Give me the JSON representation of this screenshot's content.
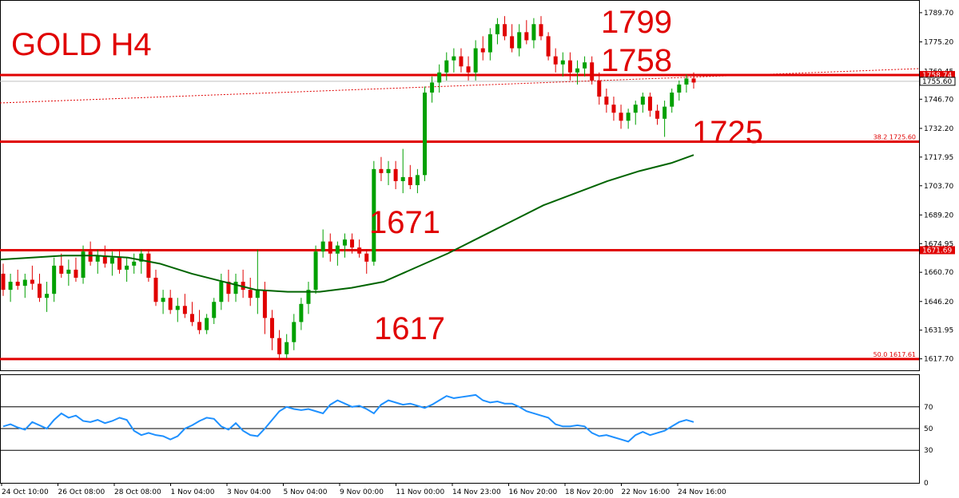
{
  "chart_data": {
    "type": "candlestick",
    "title": "GOLD H4",
    "price_axis": {
      "ylim": [
        1612,
        1796
      ],
      "ticks": [
        "1789.70",
        "1775.20",
        "1760.45",
        "1746.70",
        "1732.20",
        "1717.95",
        "1703.70",
        "1689.20",
        "1674.95",
        "1660.70",
        "1646.20",
        "1631.95",
        "1617.70"
      ]
    },
    "time_axis": {
      "ticks": [
        "24 Oct 10:00",
        "26 Oct 08:00",
        "28 Oct 08:00",
        "1 Nov 04:00",
        "3 Nov 04:00",
        "5 Nov 04:00",
        "9 Nov 00:00",
        "11 Nov 00:00",
        "14 Nov 23:00",
        "16 Nov 20:00",
        "18 Nov 20:00",
        "22 Nov 16:00",
        "24 Nov 16:00"
      ]
    },
    "horizontal_levels": [
      {
        "value": 1758.74,
        "label": "1758.74",
        "color": "#e00000"
      },
      {
        "value": 1725.6,
        "label": "38.2 1725.60",
        "color": "#e00000"
      },
      {
        "value": 1671.69,
        "label": "1671.69",
        "color": "#e00000"
      },
      {
        "value": 1617.61,
        "label": "50.0 1617.61",
        "color": "#e00000"
      }
    ],
    "current_price": "1755.60",
    "annotations": [
      "1799",
      "1758",
      "1725",
      "1671",
      "1617"
    ],
    "moving_average": [
      [
        0,
        1667
      ],
      [
        40,
        1668
      ],
      [
        80,
        1669
      ],
      [
        120,
        1669
      ],
      [
        160,
        1668
      ],
      [
        200,
        1665
      ],
      [
        240,
        1660
      ],
      [
        280,
        1656
      ],
      [
        320,
        1652
      ],
      [
        360,
        1651
      ],
      [
        400,
        1651
      ],
      [
        440,
        1653
      ],
      [
        480,
        1656
      ],
      [
        520,
        1663
      ],
      [
        560,
        1670
      ],
      [
        600,
        1678
      ],
      [
        640,
        1686
      ],
      [
        680,
        1694
      ],
      [
        720,
        1700
      ],
      [
        760,
        1706
      ],
      [
        800,
        1711
      ],
      [
        840,
        1715
      ],
      [
        868,
        1719
      ]
    ],
    "candles": [
      {
        "o": 1660,
        "h": 1665,
        "l": 1649,
        "c": 1652
      },
      {
        "o": 1652,
        "h": 1660,
        "l": 1646,
        "c": 1656
      },
      {
        "o": 1656,
        "h": 1662,
        "l": 1652,
        "c": 1654
      },
      {
        "o": 1654,
        "h": 1660,
        "l": 1648,
        "c": 1657
      },
      {
        "o": 1657,
        "h": 1664,
        "l": 1652,
        "c": 1655
      },
      {
        "o": 1655,
        "h": 1660,
        "l": 1646,
        "c": 1648
      },
      {
        "o": 1648,
        "h": 1656,
        "l": 1641,
        "c": 1650
      },
      {
        "o": 1650,
        "h": 1668,
        "l": 1646,
        "c": 1664
      },
      {
        "o": 1664,
        "h": 1670,
        "l": 1658,
        "c": 1660
      },
      {
        "o": 1660,
        "h": 1667,
        "l": 1654,
        "c": 1662
      },
      {
        "o": 1662,
        "h": 1668,
        "l": 1656,
        "c": 1658
      },
      {
        "o": 1658,
        "h": 1674,
        "l": 1655,
        "c": 1671
      },
      {
        "o": 1671,
        "h": 1676,
        "l": 1664,
        "c": 1666
      },
      {
        "o": 1666,
        "h": 1672,
        "l": 1660,
        "c": 1669
      },
      {
        "o": 1669,
        "h": 1674,
        "l": 1663,
        "c": 1665
      },
      {
        "o": 1665,
        "h": 1671,
        "l": 1659,
        "c": 1668
      },
      {
        "o": 1668,
        "h": 1672,
        "l": 1660,
        "c": 1662
      },
      {
        "o": 1662,
        "h": 1668,
        "l": 1656,
        "c": 1664
      },
      {
        "o": 1664,
        "h": 1670,
        "l": 1660,
        "c": 1666
      },
      {
        "o": 1666,
        "h": 1672,
        "l": 1660,
        "c": 1670
      },
      {
        "o": 1670,
        "h": 1672,
        "l": 1656,
        "c": 1658
      },
      {
        "o": 1658,
        "h": 1662,
        "l": 1644,
        "c": 1646
      },
      {
        "o": 1646,
        "h": 1652,
        "l": 1640,
        "c": 1648
      },
      {
        "o": 1648,
        "h": 1652,
        "l": 1640,
        "c": 1642
      },
      {
        "o": 1642,
        "h": 1648,
        "l": 1636,
        "c": 1644
      },
      {
        "o": 1644,
        "h": 1650,
        "l": 1638,
        "c": 1640
      },
      {
        "o": 1640,
        "h": 1646,
        "l": 1634,
        "c": 1636
      },
      {
        "o": 1636,
        "h": 1642,
        "l": 1630,
        "c": 1632
      },
      {
        "o": 1632,
        "h": 1640,
        "l": 1630,
        "c": 1638
      },
      {
        "o": 1638,
        "h": 1648,
        "l": 1635,
        "c": 1646
      },
      {
        "o": 1646,
        "h": 1660,
        "l": 1642,
        "c": 1656
      },
      {
        "o": 1656,
        "h": 1662,
        "l": 1646,
        "c": 1650
      },
      {
        "o": 1650,
        "h": 1660,
        "l": 1646,
        "c": 1656
      },
      {
        "o": 1656,
        "h": 1662,
        "l": 1648,
        "c": 1652
      },
      {
        "o": 1652,
        "h": 1658,
        "l": 1644,
        "c": 1648
      },
      {
        "o": 1648,
        "h": 1672,
        "l": 1640,
        "c": 1652
      },
      {
        "o": 1652,
        "h": 1656,
        "l": 1630,
        "c": 1638
      },
      {
        "o": 1638,
        "h": 1642,
        "l": 1622,
        "c": 1628
      },
      {
        "o": 1628,
        "h": 1632,
        "l": 1617,
        "c": 1620
      },
      {
        "o": 1620,
        "h": 1630,
        "l": 1618,
        "c": 1626
      },
      {
        "o": 1626,
        "h": 1640,
        "l": 1622,
        "c": 1636
      },
      {
        "o": 1636,
        "h": 1648,
        "l": 1632,
        "c": 1645
      },
      {
        "o": 1645,
        "h": 1656,
        "l": 1640,
        "c": 1652
      },
      {
        "o": 1652,
        "h": 1674,
        "l": 1650,
        "c": 1671
      },
      {
        "o": 1671,
        "h": 1682,
        "l": 1668,
        "c": 1676
      },
      {
        "o": 1676,
        "h": 1680,
        "l": 1666,
        "c": 1670
      },
      {
        "o": 1670,
        "h": 1676,
        "l": 1664,
        "c": 1674
      },
      {
        "o": 1674,
        "h": 1680,
        "l": 1668,
        "c": 1677
      },
      {
        "o": 1677,
        "h": 1680,
        "l": 1670,
        "c": 1673
      },
      {
        "o": 1673,
        "h": 1677,
        "l": 1668,
        "c": 1670
      },
      {
        "o": 1670,
        "h": 1672,
        "l": 1660,
        "c": 1666
      },
      {
        "o": 1666,
        "h": 1716,
        "l": 1664,
        "c": 1712
      },
      {
        "o": 1712,
        "h": 1718,
        "l": 1706,
        "c": 1710
      },
      {
        "o": 1710,
        "h": 1716,
        "l": 1704,
        "c": 1712
      },
      {
        "o": 1712,
        "h": 1716,
        "l": 1702,
        "c": 1706
      },
      {
        "o": 1706,
        "h": 1722,
        "l": 1700,
        "c": 1708
      },
      {
        "o": 1708,
        "h": 1714,
        "l": 1702,
        "c": 1704
      },
      {
        "o": 1704,
        "h": 1712,
        "l": 1700,
        "c": 1709
      },
      {
        "o": 1709,
        "h": 1753,
        "l": 1706,
        "c": 1750
      },
      {
        "o": 1750,
        "h": 1758,
        "l": 1745,
        "c": 1755
      },
      {
        "o": 1755,
        "h": 1764,
        "l": 1750,
        "c": 1760
      },
      {
        "o": 1760,
        "h": 1770,
        "l": 1756,
        "c": 1766
      },
      {
        "o": 1766,
        "h": 1772,
        "l": 1760,
        "c": 1768
      },
      {
        "o": 1768,
        "h": 1772,
        "l": 1760,
        "c": 1763
      },
      {
        "o": 1763,
        "h": 1768,
        "l": 1756,
        "c": 1760
      },
      {
        "o": 1760,
        "h": 1776,
        "l": 1756,
        "c": 1772
      },
      {
        "o": 1772,
        "h": 1778,
        "l": 1766,
        "c": 1770
      },
      {
        "o": 1770,
        "h": 1782,
        "l": 1766,
        "c": 1779
      },
      {
        "o": 1779,
        "h": 1787,
        "l": 1774,
        "c": 1784
      },
      {
        "o": 1784,
        "h": 1788,
        "l": 1776,
        "c": 1778
      },
      {
        "o": 1778,
        "h": 1784,
        "l": 1770,
        "c": 1772
      },
      {
        "o": 1772,
        "h": 1784,
        "l": 1768,
        "c": 1780
      },
      {
        "o": 1780,
        "h": 1786,
        "l": 1774,
        "c": 1776
      },
      {
        "o": 1776,
        "h": 1787,
        "l": 1772,
        "c": 1784
      },
      {
        "o": 1784,
        "h": 1788,
        "l": 1776,
        "c": 1778
      },
      {
        "o": 1778,
        "h": 1780,
        "l": 1766,
        "c": 1768
      },
      {
        "o": 1768,
        "h": 1772,
        "l": 1760,
        "c": 1764
      },
      {
        "o": 1764,
        "h": 1770,
        "l": 1758,
        "c": 1766
      },
      {
        "o": 1766,
        "h": 1770,
        "l": 1756,
        "c": 1760
      },
      {
        "o": 1760,
        "h": 1766,
        "l": 1754,
        "c": 1762
      },
      {
        "o": 1762,
        "h": 1768,
        "l": 1758,
        "c": 1765
      },
      {
        "o": 1765,
        "h": 1768,
        "l": 1754,
        "c": 1756
      },
      {
        "o": 1756,
        "h": 1760,
        "l": 1744,
        "c": 1748
      },
      {
        "o": 1748,
        "h": 1752,
        "l": 1740,
        "c": 1744
      },
      {
        "o": 1744,
        "h": 1748,
        "l": 1736,
        "c": 1740
      },
      {
        "o": 1740,
        "h": 1744,
        "l": 1732,
        "c": 1736
      },
      {
        "o": 1736,
        "h": 1742,
        "l": 1732,
        "c": 1740
      },
      {
        "o": 1740,
        "h": 1746,
        "l": 1734,
        "c": 1744
      },
      {
        "o": 1744,
        "h": 1750,
        "l": 1740,
        "c": 1748
      },
      {
        "o": 1748,
        "h": 1750,
        "l": 1738,
        "c": 1741
      },
      {
        "o": 1741,
        "h": 1744,
        "l": 1734,
        "c": 1737
      },
      {
        "o": 1737,
        "h": 1746,
        "l": 1728,
        "c": 1743
      },
      {
        "o": 1743,
        "h": 1752,
        "l": 1740,
        "c": 1750
      },
      {
        "o": 1750,
        "h": 1756,
        "l": 1746,
        "c": 1754
      },
      {
        "o": 1754,
        "h": 1759,
        "l": 1750,
        "c": 1757
      },
      {
        "o": 1757,
        "h": 1760,
        "l": 1752,
        "c": 1755
      }
    ],
    "rsi": {
      "levels": [
        70,
        50,
        30
      ],
      "axis_ticks": [
        "70",
        "50",
        "30",
        "0"
      ],
      "values": [
        52,
        54,
        51,
        49,
        56,
        53,
        50,
        58,
        64,
        60,
        62,
        57,
        56,
        58,
        55,
        57,
        60,
        58,
        48,
        44,
        46,
        44,
        43,
        40,
        43,
        50,
        53,
        57,
        60,
        59,
        52,
        49,
        55,
        48,
        44,
        43,
        50,
        58,
        66,
        70,
        68,
        67,
        68,
        66,
        64,
        72,
        76,
        73,
        70,
        71,
        68,
        64,
        72,
        76,
        74,
        72,
        73,
        71,
        69,
        72,
        76,
        80,
        78,
        79,
        80,
        81,
        76,
        74,
        75,
        73,
        73,
        70,
        66,
        64,
        62,
        60,
        54,
        52,
        52,
        53,
        52,
        46,
        43,
        44,
        42,
        40,
        38,
        44,
        47,
        44,
        46,
        48,
        52,
        56,
        58,
        56
      ]
    }
  }
}
